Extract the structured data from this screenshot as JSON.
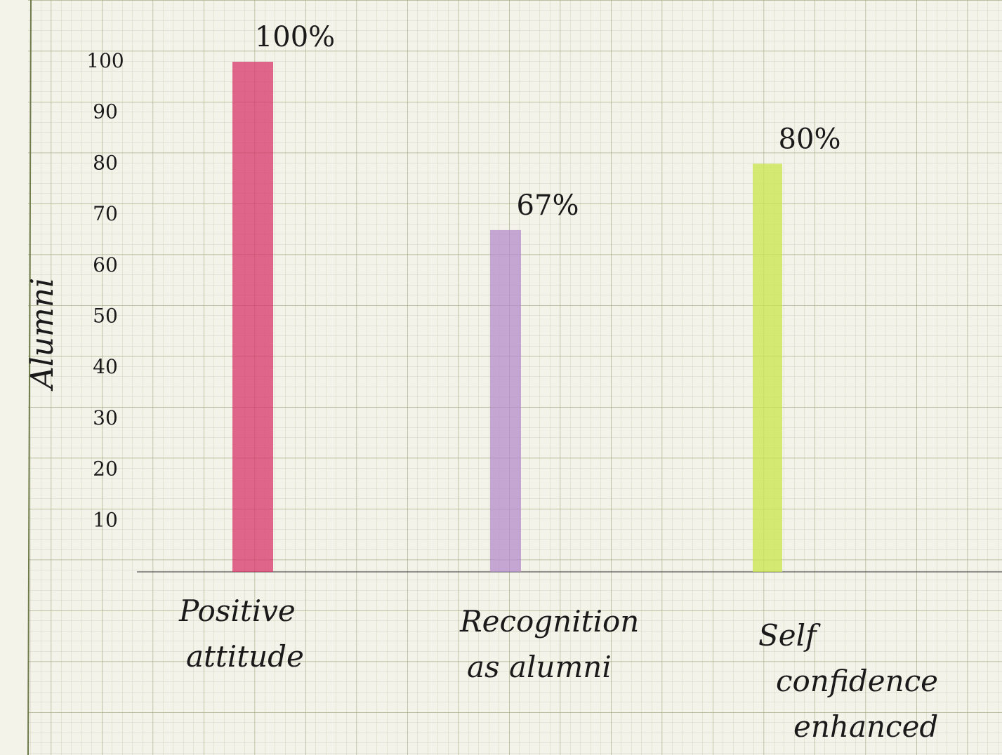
{
  "chart_data": {
    "type": "bar",
    "title": "",
    "ylabel": "Alumni",
    "xlabel": "",
    "ylim": [
      0,
      100
    ],
    "yticks": [
      10,
      20,
      30,
      40,
      50,
      60,
      70,
      80,
      90,
      100
    ],
    "grid": true,
    "categories": [
      [
        "Positive",
        "attitude"
      ],
      [
        "Recognition",
        "as alumni"
      ],
      [
        "Self",
        "confidence",
        "enhanced"
      ]
    ],
    "values": [
      100,
      67,
      80
    ],
    "value_labels": [
      "100%",
      "67%",
      "80%"
    ],
    "colors": [
      "#d8356a",
      "#b68bc9",
      "#c9e54a"
    ]
  }
}
